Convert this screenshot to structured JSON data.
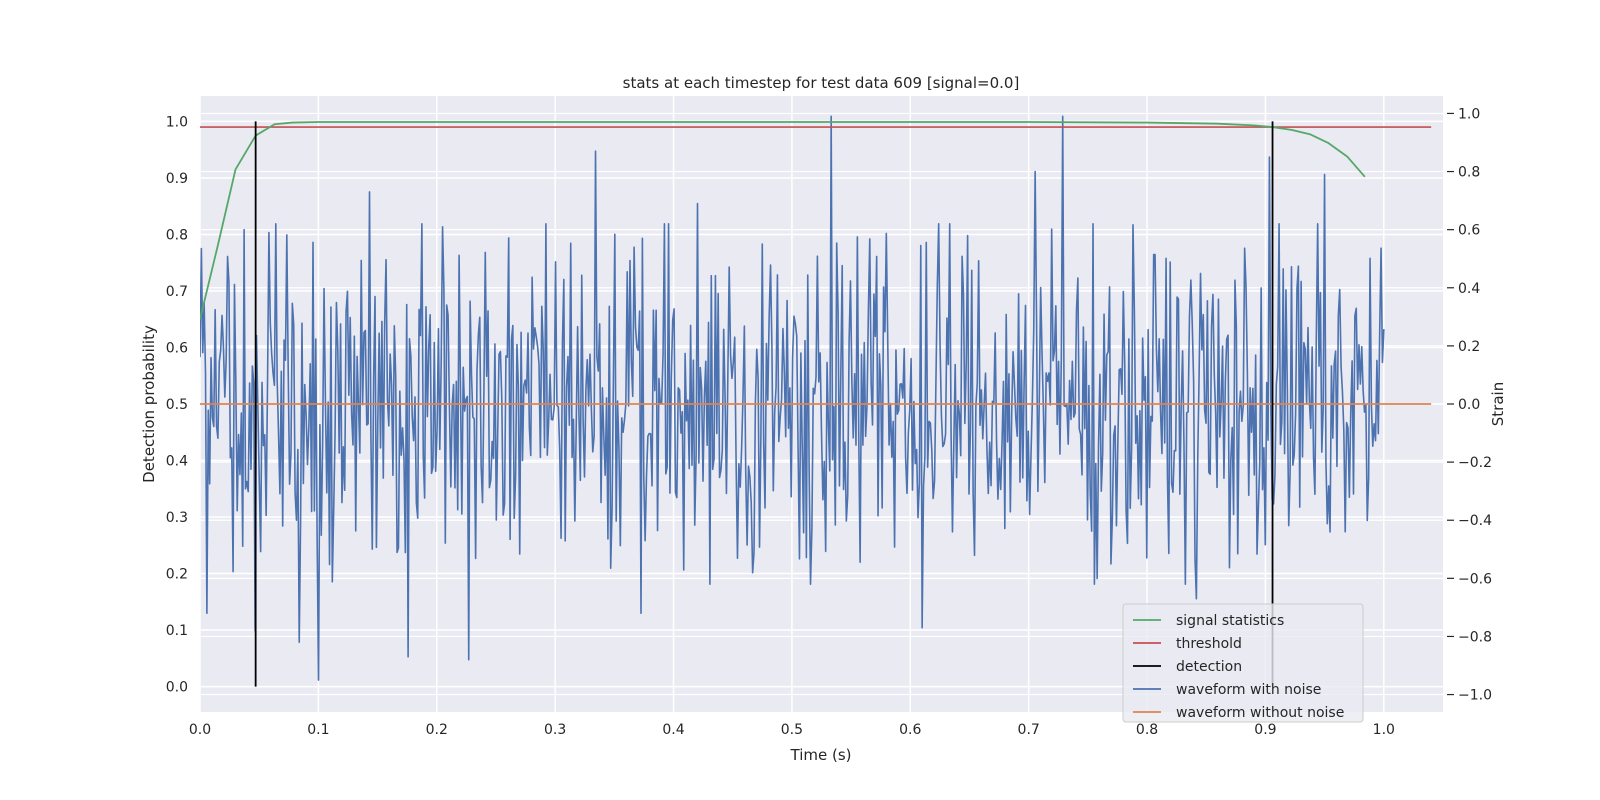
{
  "chart_data": {
    "type": "line",
    "title": "stats at each timestep for test data 609 [signal=0.0]",
    "xlabel": "Time (s)",
    "ylabel": "Detection probability",
    "y2label": "Strain",
    "xlim": [
      0.0,
      1.05
    ],
    "ylim": [
      -0.045,
      1.045
    ],
    "y2lim": [
      -1.06,
      1.06
    ],
    "x_ticks": [
      0.0,
      0.1,
      0.2,
      0.3,
      0.4,
      0.5,
      0.6,
      0.7,
      0.8,
      0.9,
      1.0
    ],
    "x_tick_labels": [
      "0.0",
      "0.1",
      "0.2",
      "0.3",
      "0.4",
      "0.5",
      "0.6",
      "0.7",
      "0.8",
      "0.9",
      "1.0"
    ],
    "y_ticks": [
      0.0,
      0.1,
      0.2,
      0.3,
      0.4,
      0.5,
      0.6,
      0.7,
      0.8,
      0.9,
      1.0
    ],
    "y_tick_labels": [
      "0.0",
      "0.1",
      "0.2",
      "0.3",
      "0.4",
      "0.5",
      "0.6",
      "0.7",
      "0.8",
      "0.9",
      "1.0"
    ],
    "y2_ticks": [
      -1.0,
      -0.8,
      -0.6,
      -0.4,
      -0.2,
      0.0,
      0.2,
      0.4,
      0.6,
      0.8,
      1.0
    ],
    "y2_tick_labels": [
      "−1.0",
      "−0.8",
      "−0.6",
      "−0.4",
      "−0.2",
      "0.0",
      "0.2",
      "0.4",
      "0.6",
      "0.8",
      "1.0"
    ],
    "grid": true,
    "legend_position": "lower-right",
    "series": [
      {
        "name": "signal statistics",
        "axis": "left",
        "color": "#55a868",
        "x": [
          0.0,
          0.015,
          0.03,
          0.047,
          0.063,
          0.078,
          0.1,
          0.2,
          0.3,
          0.5,
          0.7,
          0.8,
          0.86,
          0.89,
          0.906,
          0.922,
          0.938,
          0.953,
          0.969,
          0.984
        ],
        "y": [
          0.65,
          0.78,
          0.915,
          0.975,
          0.995,
          0.998,
          0.999,
          0.999,
          0.999,
          0.999,
          0.999,
          0.998,
          0.996,
          0.993,
          0.99,
          0.985,
          0.977,
          0.962,
          0.938,
          0.902
        ]
      },
      {
        "name": "threshold",
        "axis": "left",
        "color": "#c44e52",
        "x": [
          0.0,
          1.04
        ],
        "y": [
          0.99,
          0.99
        ]
      },
      {
        "name": "detection",
        "axis": "left",
        "color": "#000000",
        "segments": [
          {
            "x": 0.047,
            "y": [
              0.0,
              1.0
            ]
          },
          {
            "x": 0.906,
            "y": [
              0.0,
              1.0
            ]
          }
        ]
      },
      {
        "name": "waveform with noise",
        "axis": "right",
        "color": "#4c72b0",
        "x_range": [
          0.0,
          1.0
        ],
        "n_points": 860,
        "y_range": [
          -0.95,
          0.99
        ],
        "peaks": [
          {
            "x": 0.003,
            "y": 0.35
          },
          {
            "x": 0.006,
            "y": -0.72
          },
          {
            "x": 0.037,
            "y": 0.6
          },
          {
            "x": 0.047,
            "y": -0.78
          },
          {
            "x": 0.058,
            "y": 0.59
          },
          {
            "x": 0.084,
            "y": -0.82
          },
          {
            "x": 0.1,
            "y": -0.95
          },
          {
            "x": 0.143,
            "y": 0.73
          },
          {
            "x": 0.176,
            "y": -0.87
          },
          {
            "x": 0.205,
            "y": 0.61
          },
          {
            "x": 0.227,
            "y": -0.88
          },
          {
            "x": 0.334,
            "y": 0.87
          },
          {
            "x": 0.372,
            "y": -0.72
          },
          {
            "x": 0.42,
            "y": 0.69
          },
          {
            "x": 0.533,
            "y": 0.99
          },
          {
            "x": 0.61,
            "y": -0.77
          },
          {
            "x": 0.706,
            "y": 0.8
          },
          {
            "x": 0.729,
            "y": 0.99
          },
          {
            "x": 0.842,
            "y": -0.67
          },
          {
            "x": 0.903,
            "y": 0.85
          },
          {
            "x": 0.95,
            "y": 0.79
          },
          {
            "x": 0.955,
            "y": -0.44
          }
        ]
      },
      {
        "name": "waveform without noise",
        "axis": "right",
        "color": "#dd8452",
        "x": [
          0.0,
          1.04
        ],
        "y": [
          0.0,
          0.0
        ]
      }
    ]
  }
}
